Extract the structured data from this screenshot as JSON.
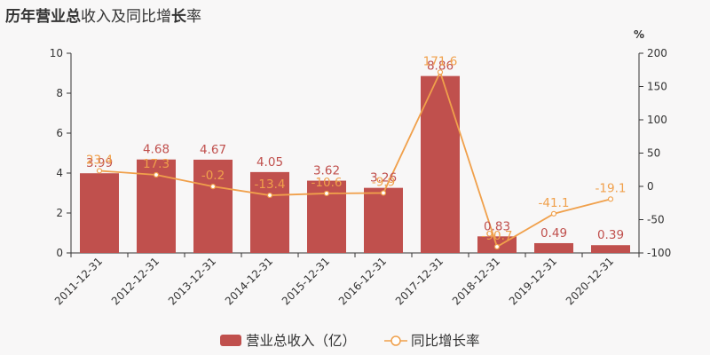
{
  "title": {
    "part1": "历年",
    "part2": "营业总",
    "part3": "收入及同比增",
    "part4": "长",
    "part5": "率"
  },
  "colors": {
    "bar": "#c0504d",
    "line": "#f0a04b",
    "axis": "#333333"
  },
  "chart_data": {
    "type": "bar",
    "title": "历年营业总收入及同比增长率",
    "categories": [
      "2011-12-31",
      "2012-12-31",
      "2013-12-31",
      "2014-12-31",
      "2015-12-31",
      "2016-12-31",
      "2017-12-31",
      "2018-12-31",
      "2019-12-31",
      "2020-12-31"
    ],
    "series": [
      {
        "name": "营业总收入（亿）",
        "type": "bar",
        "axis": "left",
        "values": [
          3.99,
          4.68,
          4.67,
          4.05,
          3.62,
          3.26,
          8.86,
          0.83,
          0.49,
          0.39
        ],
        "labels": [
          "3.99",
          "4.68",
          "4.67",
          "4.05",
          "3.62",
          "3.26",
          "8.86",
          "0.83",
          "0.49",
          "0.39"
        ]
      },
      {
        "name": "同比增长率",
        "type": "line",
        "axis": "right",
        "values": [
          23.4,
          17.3,
          -0.2,
          -13.4,
          -10.6,
          -9.9,
          171.6,
          -90.7,
          -41.1,
          -19.1
        ],
        "labels": [
          "23.4",
          "17.3",
          "-0.2",
          "-13.4",
          "-10.6",
          "-9.9",
          "171.6",
          "-90.7",
          "-41.1",
          "-19.1"
        ]
      }
    ],
    "y_left": {
      "min": 0,
      "max": 10,
      "ticks": [
        "0",
        "2",
        "4",
        "6",
        "8",
        "10"
      ]
    },
    "y_right": {
      "label": "%",
      "min": -100,
      "max": 200,
      "ticks": [
        "-100",
        "-50",
        "0",
        "50",
        "100",
        "150",
        "200"
      ]
    },
    "grid": false,
    "legend_position": "bottom"
  }
}
